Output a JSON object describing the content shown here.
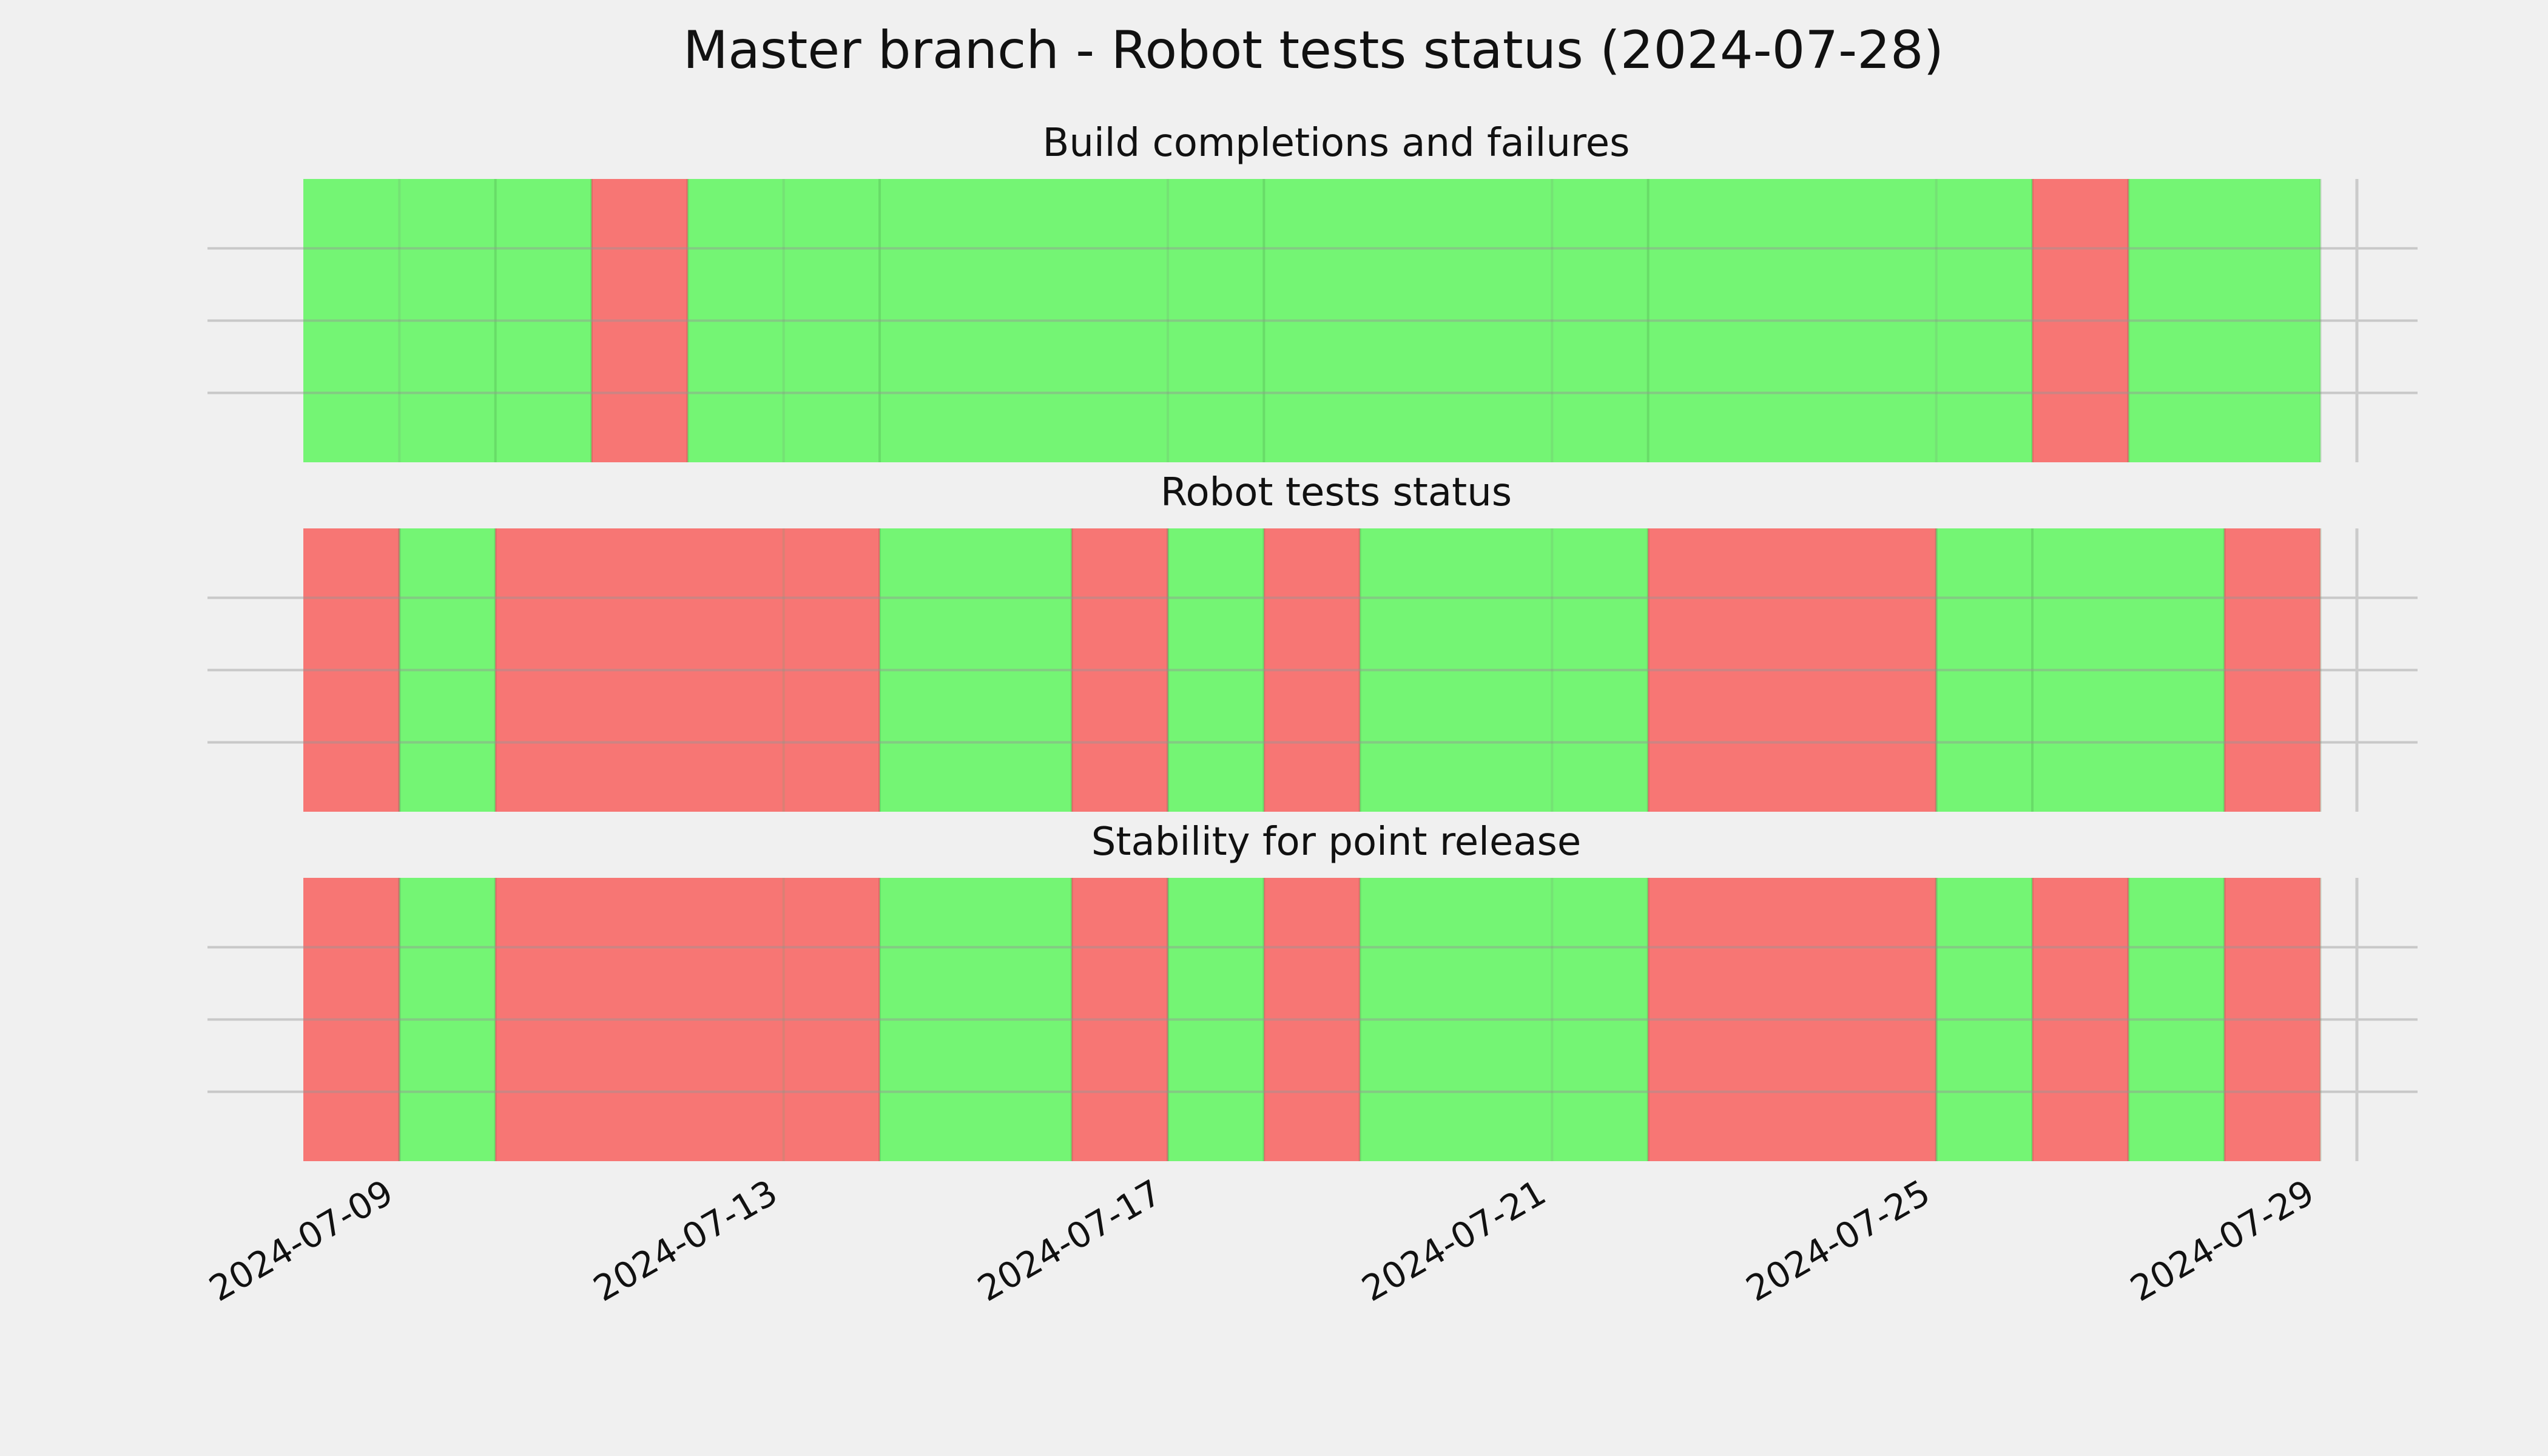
{
  "chart_data": {
    "type": "timeline",
    "title": "Master branch - Robot tests status (2024-07-28)",
    "x_range": [
      "2024-07-08",
      "2024-07-29"
    ],
    "x_ticks": [
      "2024-07-09",
      "2024-07-13",
      "2024-07-17",
      "2024-07-21",
      "2024-07-25",
      "2024-07-29"
    ],
    "grid": true,
    "status_colors": {
      "pass": "#74f574",
      "fail": "#f77674"
    },
    "panels": [
      {
        "title": "Build completions and failures",
        "segments": [
          {
            "start": "2024-07-08",
            "end": "2024-07-10",
            "status": "pass"
          },
          {
            "start": "2024-07-10",
            "end": "2024-07-11",
            "status": "pass"
          },
          {
            "start": "2024-07-11",
            "end": "2024-07-12",
            "status": "fail"
          },
          {
            "start": "2024-07-12",
            "end": "2024-07-14",
            "status": "pass"
          },
          {
            "start": "2024-07-14",
            "end": "2024-07-18",
            "status": "pass"
          },
          {
            "start": "2024-07-18",
            "end": "2024-07-22",
            "status": "pass"
          },
          {
            "start": "2024-07-22",
            "end": "2024-07-26",
            "status": "pass"
          },
          {
            "start": "2024-07-26",
            "end": "2024-07-27",
            "status": "fail"
          },
          {
            "start": "2024-07-27",
            "end": "2024-07-29",
            "status": "pass"
          }
        ]
      },
      {
        "title": "Robot tests status",
        "segments": [
          {
            "start": "2024-07-08",
            "end": "2024-07-09",
            "status": "fail"
          },
          {
            "start": "2024-07-09",
            "end": "2024-07-10",
            "status": "pass"
          },
          {
            "start": "2024-07-10",
            "end": "2024-07-14",
            "status": "fail"
          },
          {
            "start": "2024-07-14",
            "end": "2024-07-16",
            "status": "pass"
          },
          {
            "start": "2024-07-16",
            "end": "2024-07-17",
            "status": "fail"
          },
          {
            "start": "2024-07-17",
            "end": "2024-07-18",
            "status": "pass"
          },
          {
            "start": "2024-07-18",
            "end": "2024-07-19",
            "status": "fail"
          },
          {
            "start": "2024-07-19",
            "end": "2024-07-22",
            "status": "pass"
          },
          {
            "start": "2024-07-22",
            "end": "2024-07-25",
            "status": "fail"
          },
          {
            "start": "2024-07-25",
            "end": "2024-07-26",
            "status": "pass"
          },
          {
            "start": "2024-07-26",
            "end": "2024-07-28",
            "status": "pass"
          },
          {
            "start": "2024-07-28",
            "end": "2024-07-29",
            "status": "fail"
          }
        ]
      },
      {
        "title": "Stability for point release",
        "segments": [
          {
            "start": "2024-07-08",
            "end": "2024-07-09",
            "status": "fail"
          },
          {
            "start": "2024-07-09",
            "end": "2024-07-10",
            "status": "pass"
          },
          {
            "start": "2024-07-10",
            "end": "2024-07-14",
            "status": "fail"
          },
          {
            "start": "2024-07-14",
            "end": "2024-07-16",
            "status": "pass"
          },
          {
            "start": "2024-07-16",
            "end": "2024-07-17",
            "status": "fail"
          },
          {
            "start": "2024-07-17",
            "end": "2024-07-18",
            "status": "pass"
          },
          {
            "start": "2024-07-18",
            "end": "2024-07-19",
            "status": "fail"
          },
          {
            "start": "2024-07-19",
            "end": "2024-07-22",
            "status": "pass"
          },
          {
            "start": "2024-07-22",
            "end": "2024-07-25",
            "status": "fail"
          },
          {
            "start": "2024-07-25",
            "end": "2024-07-26",
            "status": "pass"
          },
          {
            "start": "2024-07-26",
            "end": "2024-07-27",
            "status": "fail"
          },
          {
            "start": "2024-07-27",
            "end": "2024-07-28",
            "status": "pass"
          },
          {
            "start": "2024-07-28",
            "end": "2024-07-29",
            "status": "fail"
          }
        ]
      }
    ]
  }
}
